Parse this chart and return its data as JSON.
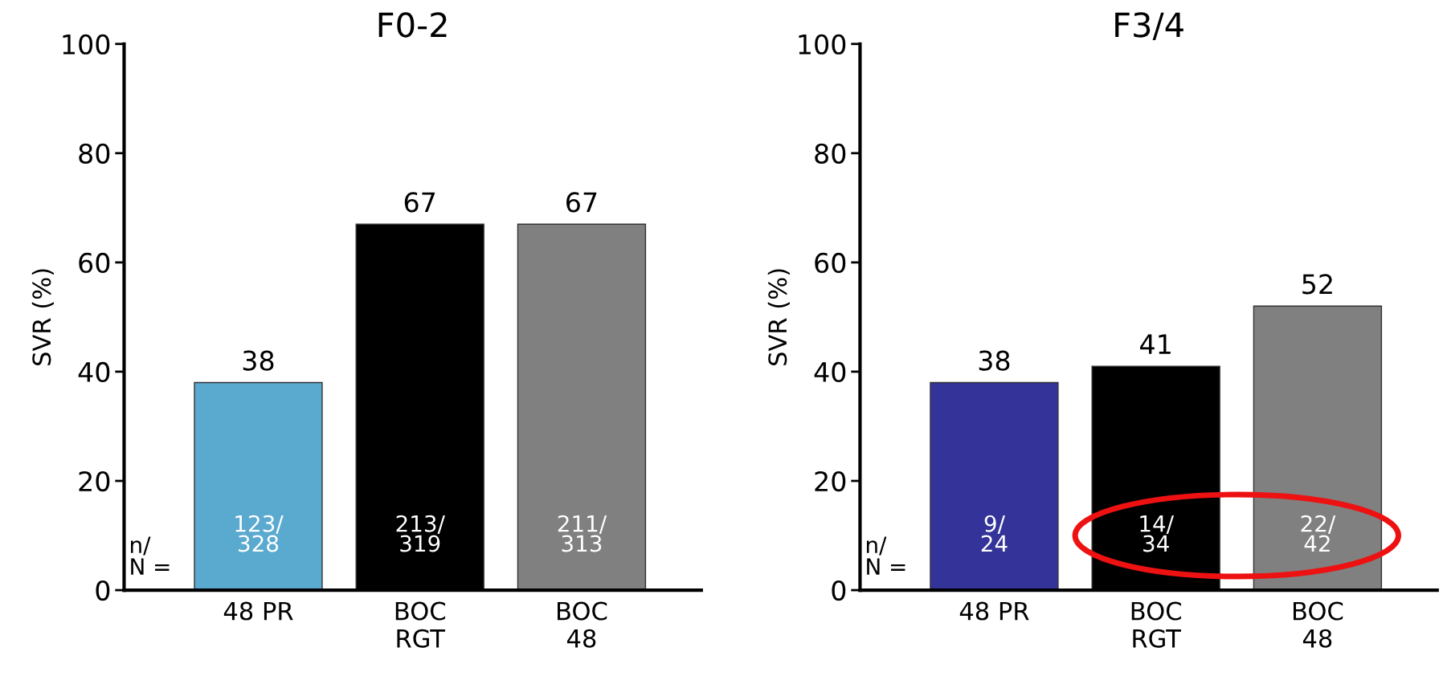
{
  "chart_data": [
    {
      "type": "bar",
      "title": "F0-2",
      "ylabel": "SVR (%)",
      "categories": [
        "48 PR",
        "BOC\nRGT",
        "BOC\n48"
      ],
      "values": [
        38,
        67,
        67
      ],
      "colors": [
        "#5aa9cf",
        "#000000",
        "#808080"
      ],
      "ylim": [
        0,
        100
      ],
      "yticks": [
        0,
        20,
        40,
        60,
        80,
        100
      ],
      "data_labels": true,
      "grid": false,
      "annotations": [
        "n/\nN =",
        "123/\n328",
        "213/\n319",
        "211/\n313"
      ]
    },
    {
      "type": "bar",
      "title": "F3/4",
      "ylabel": "SVR (%)",
      "categories": [
        "48 PR",
        "BOC\nRGT",
        "BOC\n48"
      ],
      "values": [
        38,
        41,
        52
      ],
      "colors": [
        "#333399",
        "#000000",
        "#808080"
      ],
      "ylim": [
        0,
        100
      ],
      "yticks": [
        0,
        20,
        40,
        60,
        80,
        100
      ],
      "data_labels": true,
      "grid": false,
      "annotations": [
        "n/\nN =",
        "9/\n24",
        "14/\n34",
        "22/\n42"
      ]
    }
  ]
}
